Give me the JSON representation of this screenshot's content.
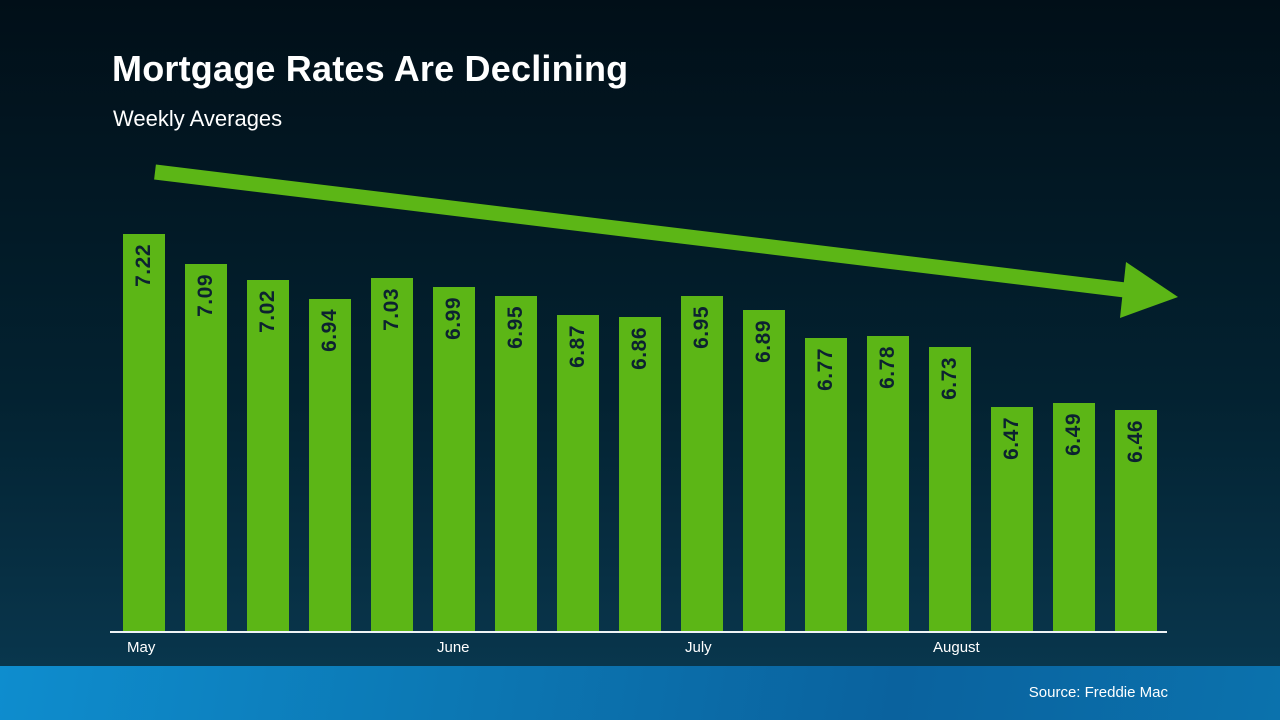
{
  "slide": {
    "title": "Mortgage Rates Are Declining",
    "subtitle": "Weekly Averages",
    "source": "Source: Freddie Mac",
    "colors": {
      "bar_green": "#5cb616",
      "arrow_green": "#5cb616",
      "background_top": "#010f18",
      "background_bottom": "#0a3a52",
      "footer_band_blue": "#0c78b4",
      "bar_value_text": "#0c2230",
      "axis_white": "#eef3f5"
    }
  },
  "chart_data": {
    "type": "bar",
    "title": "Mortgage Rates Are Declining",
    "subtitle": "Weekly Averages",
    "xlabel": "",
    "ylabel": "",
    "ylim": [
      5.5,
      7.4
    ],
    "grid": false,
    "legend": "none",
    "values": [
      7.22,
      7.09,
      7.02,
      6.94,
      7.03,
      6.99,
      6.95,
      6.87,
      6.86,
      6.95,
      6.89,
      6.77,
      6.78,
      6.73,
      6.47,
      6.49,
      6.46
    ],
    "bar_labels": [
      "7.22",
      "7.09",
      "7.02",
      "6.94",
      "7.03",
      "6.99",
      "6.95",
      "6.87",
      "6.86",
      "6.95",
      "6.89",
      "6.77",
      "6.78",
      "6.73",
      "6.47",
      "6.49",
      "6.46"
    ],
    "x_tick_labels": [
      {
        "label": "May",
        "bar_index": 0
      },
      {
        "label": "June",
        "bar_index": 5
      },
      {
        "label": "July",
        "bar_index": 9
      },
      {
        "label": "August",
        "bar_index": 13
      }
    ],
    "annotation": "green declining trend arrow from upper-left to right",
    "source": "Source: Freddie Mac"
  }
}
